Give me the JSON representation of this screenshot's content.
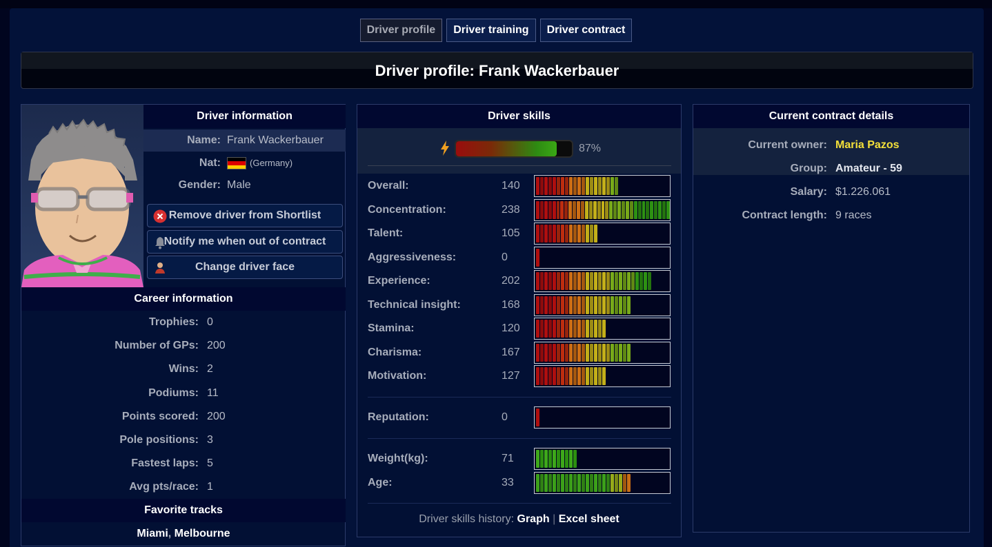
{
  "tabs": [
    {
      "label": "Driver profile",
      "active": true
    },
    {
      "label": "Driver training",
      "active": false
    },
    {
      "label": "Driver contract",
      "active": false
    }
  ],
  "page_title": "Driver profile: Frank Wackerbauer",
  "driver_info": {
    "header": "Driver information",
    "name_label": "Name:",
    "name": "Frank Wackerbauer",
    "nat_label": "Nat:",
    "nat_country": "(Germany)",
    "flag_icon": "germany-flag-icon",
    "gender_label": "Gender:",
    "gender": "Male"
  },
  "actions": {
    "remove": "Remove driver from Shortlist",
    "notify": "Notify me when out of contract",
    "change_face": "Change driver face"
  },
  "career": {
    "header": "Career information",
    "rows": [
      {
        "label": "Trophies:",
        "value": "0"
      },
      {
        "label": "Number of GPs:",
        "value": "200"
      },
      {
        "label": "Wins:",
        "value": "2"
      },
      {
        "label": "Podiums:",
        "value": "11"
      },
      {
        "label": "Points scored:",
        "value": "200"
      },
      {
        "label": "Pole positions:",
        "value": "3"
      },
      {
        "label": "Fastest laps:",
        "value": "5"
      },
      {
        "label": "Avg pts/race:",
        "value": "1"
      }
    ]
  },
  "favorite_tracks": {
    "header": "Favorite tracks",
    "tracks": [
      "Miami",
      "Melbourne"
    ],
    "separator": ","
  },
  "skills": {
    "header": "Driver skills",
    "energy_percent": 87,
    "energy_label": "87%",
    "main": [
      {
        "label": "Overall:",
        "value": 140,
        "fill": 0.55,
        "type": "heat"
      },
      {
        "label": "Concentration:",
        "value": 238,
        "fill": 0.91,
        "type": "heat"
      },
      {
        "label": "Talent:",
        "value": 105,
        "fill": 0.41,
        "type": "heat"
      },
      {
        "label": "Aggressiveness:",
        "value": 0,
        "fill": 0.03,
        "type": "heat"
      },
      {
        "label": "Experience:",
        "value": 202,
        "fill": 0.78,
        "type": "heat"
      },
      {
        "label": "Technical insight:",
        "value": 168,
        "fill": 0.64,
        "type": "heat"
      },
      {
        "label": "Stamina:",
        "value": 120,
        "fill": 0.48,
        "type": "heat"
      },
      {
        "label": "Charisma:",
        "value": 167,
        "fill": 0.64,
        "type": "heat"
      },
      {
        "label": "Motivation:",
        "value": 127,
        "fill": 0.48,
        "type": "heat"
      }
    ],
    "reputation": {
      "label": "Reputation:",
      "value": 0,
      "fill": 0.03,
      "type": "heat"
    },
    "physical": [
      {
        "label": "Weight(kg):",
        "value": 71,
        "fill": 0.27,
        "type": "green"
      },
      {
        "label": "Age:",
        "value": 33,
        "fill": 0.64,
        "type": "age"
      }
    ],
    "history_label": "Driver skills history:",
    "history_graph": "Graph",
    "history_sep": "|",
    "history_excel": "Excel sheet"
  },
  "contract": {
    "header": "Current contract details",
    "rows": [
      {
        "label": "Current owner:",
        "value": "Maria Pazos",
        "style": "owner"
      },
      {
        "label": "Group:",
        "value": "Amateur - 59",
        "style": "bold"
      },
      {
        "label": "Salary:",
        "value": "$1.226.061",
        "style": "plain"
      },
      {
        "label": "Contract length:",
        "value": "9 races",
        "style": "plain"
      }
    ]
  },
  "colors": {
    "owner": "#f4e03a",
    "heat_low": "#b30f0f",
    "heat_mid": "#c9b41b",
    "heat_high": "#2f9e12"
  }
}
